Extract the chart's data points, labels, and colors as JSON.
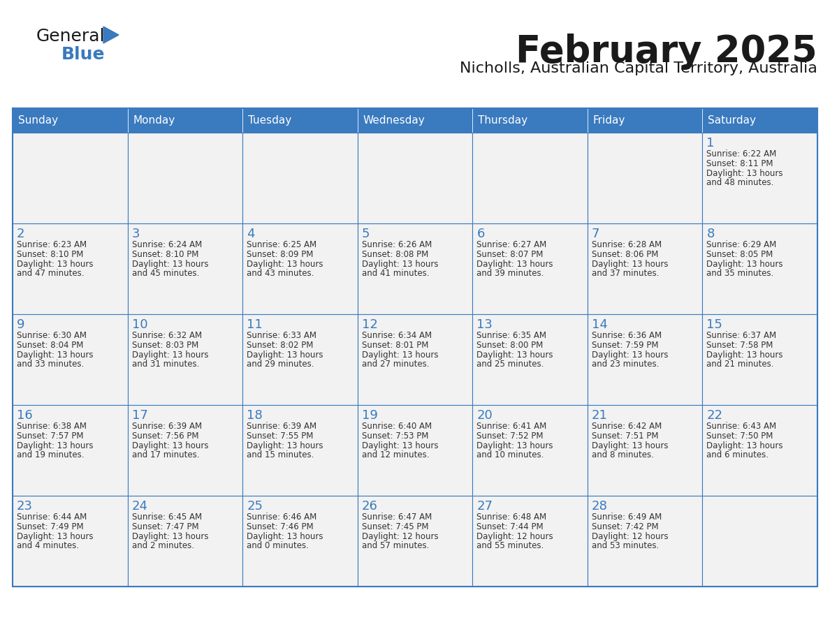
{
  "title": "February 2025",
  "subtitle": "Nicholls, Australian Capital Territory, Australia",
  "header_bg": "#3a7abf",
  "header_text": "#ffffff",
  "cell_bg_light": "#f2f2f2",
  "cell_bg_white": "#ffffff",
  "border_color": "#3a7abf",
  "day_headers": [
    "Sunday",
    "Monday",
    "Tuesday",
    "Wednesday",
    "Thursday",
    "Friday",
    "Saturday"
  ],
  "title_color": "#1a1a1a",
  "subtitle_color": "#1a1a1a",
  "day_number_color": "#3a7abf",
  "cell_text_color": "#333333",
  "calendar_data": [
    [
      null,
      null,
      null,
      null,
      null,
      null,
      {
        "day": 1,
        "sunrise": "6:22 AM",
        "sunset": "8:11 PM",
        "daylight": "13 hours and 48 minutes."
      }
    ],
    [
      {
        "day": 2,
        "sunrise": "6:23 AM",
        "sunset": "8:10 PM",
        "daylight": "13 hours and 47 minutes."
      },
      {
        "day": 3,
        "sunrise": "6:24 AM",
        "sunset": "8:10 PM",
        "daylight": "13 hours and 45 minutes."
      },
      {
        "day": 4,
        "sunrise": "6:25 AM",
        "sunset": "8:09 PM",
        "daylight": "13 hours and 43 minutes."
      },
      {
        "day": 5,
        "sunrise": "6:26 AM",
        "sunset": "8:08 PM",
        "daylight": "13 hours and 41 minutes."
      },
      {
        "day": 6,
        "sunrise": "6:27 AM",
        "sunset": "8:07 PM",
        "daylight": "13 hours and 39 minutes."
      },
      {
        "day": 7,
        "sunrise": "6:28 AM",
        "sunset": "8:06 PM",
        "daylight": "13 hours and 37 minutes."
      },
      {
        "day": 8,
        "sunrise": "6:29 AM",
        "sunset": "8:05 PM",
        "daylight": "13 hours and 35 minutes."
      }
    ],
    [
      {
        "day": 9,
        "sunrise": "6:30 AM",
        "sunset": "8:04 PM",
        "daylight": "13 hours and 33 minutes."
      },
      {
        "day": 10,
        "sunrise": "6:32 AM",
        "sunset": "8:03 PM",
        "daylight": "13 hours and 31 minutes."
      },
      {
        "day": 11,
        "sunrise": "6:33 AM",
        "sunset": "8:02 PM",
        "daylight": "13 hours and 29 minutes."
      },
      {
        "day": 12,
        "sunrise": "6:34 AM",
        "sunset": "8:01 PM",
        "daylight": "13 hours and 27 minutes."
      },
      {
        "day": 13,
        "sunrise": "6:35 AM",
        "sunset": "8:00 PM",
        "daylight": "13 hours and 25 minutes."
      },
      {
        "day": 14,
        "sunrise": "6:36 AM",
        "sunset": "7:59 PM",
        "daylight": "13 hours and 23 minutes."
      },
      {
        "day": 15,
        "sunrise": "6:37 AM",
        "sunset": "7:58 PM",
        "daylight": "13 hours and 21 minutes."
      }
    ],
    [
      {
        "day": 16,
        "sunrise": "6:38 AM",
        "sunset": "7:57 PM",
        "daylight": "13 hours and 19 minutes."
      },
      {
        "day": 17,
        "sunrise": "6:39 AM",
        "sunset": "7:56 PM",
        "daylight": "13 hours and 17 minutes."
      },
      {
        "day": 18,
        "sunrise": "6:39 AM",
        "sunset": "7:55 PM",
        "daylight": "13 hours and 15 minutes."
      },
      {
        "day": 19,
        "sunrise": "6:40 AM",
        "sunset": "7:53 PM",
        "daylight": "13 hours and 12 minutes."
      },
      {
        "day": 20,
        "sunrise": "6:41 AM",
        "sunset": "7:52 PM",
        "daylight": "13 hours and 10 minutes."
      },
      {
        "day": 21,
        "sunrise": "6:42 AM",
        "sunset": "7:51 PM",
        "daylight": "13 hours and 8 minutes."
      },
      {
        "day": 22,
        "sunrise": "6:43 AM",
        "sunset": "7:50 PM",
        "daylight": "13 hours and 6 minutes."
      }
    ],
    [
      {
        "day": 23,
        "sunrise": "6:44 AM",
        "sunset": "7:49 PM",
        "daylight": "13 hours and 4 minutes."
      },
      {
        "day": 24,
        "sunrise": "6:45 AM",
        "sunset": "7:47 PM",
        "daylight": "13 hours and 2 minutes."
      },
      {
        "day": 25,
        "sunrise": "6:46 AM",
        "sunset": "7:46 PM",
        "daylight": "13 hours and 0 minutes."
      },
      {
        "day": 26,
        "sunrise": "6:47 AM",
        "sunset": "7:45 PM",
        "daylight": "12 hours and 57 minutes."
      },
      {
        "day": 27,
        "sunrise": "6:48 AM",
        "sunset": "7:44 PM",
        "daylight": "12 hours and 55 minutes."
      },
      {
        "day": 28,
        "sunrise": "6:49 AM",
        "sunset": "7:42 PM",
        "daylight": "12 hours and 53 minutes."
      },
      null
    ]
  ],
  "logo_text_general": "General",
  "logo_text_blue": "Blue",
  "logo_general_color": "#1a1a1a",
  "logo_blue_color": "#3a7abf",
  "logo_triangle_color": "#3a7abf"
}
